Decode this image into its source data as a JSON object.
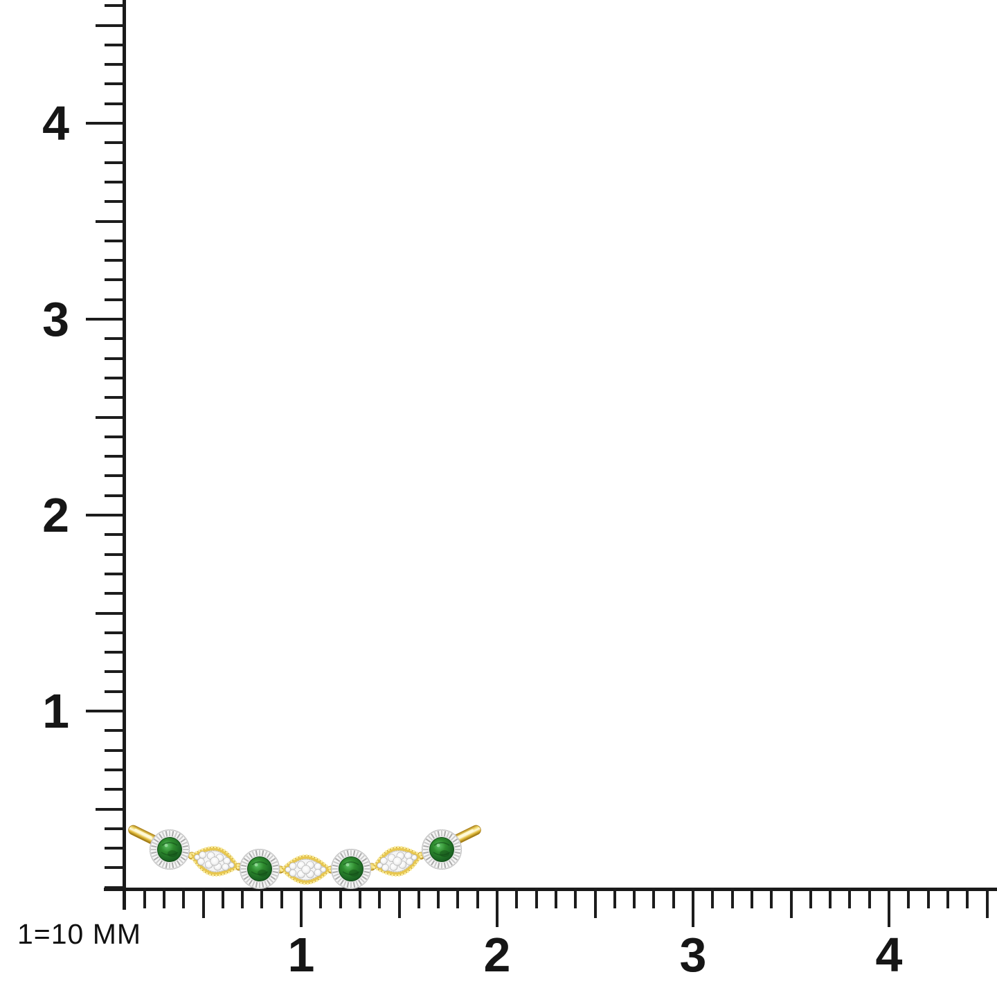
{
  "scale_note": {
    "text": "1=10 MM"
  },
  "vertical_ruler": {
    "labels": [
      "4",
      "3",
      "2",
      "1"
    ],
    "major_values_top_to_bottom": [
      4,
      3,
      2,
      1
    ],
    "minor_step": 0.1,
    "half_step_medium_ticks": true
  },
  "horizontal_ruler": {
    "labels": [
      "1",
      "2",
      "3",
      "4"
    ],
    "major_values_left_to_right": [
      1,
      2,
      3,
      4
    ],
    "minor_step": 0.1,
    "half_step_medium_ticks": true
  },
  "ruler_color": "#1A1A1A",
  "jewelry": {
    "type": "curved bar pendant",
    "round_green_stone_halos": 4,
    "marquise_diamond_clusters": 3,
    "gold_end_tabs": 2,
    "colors": {
      "gold": "#E7C64F",
      "gold_dark": "#B2881F",
      "gold_deep": "#8F6C10",
      "gold_light": "#FBEC9A",
      "gold_highlight": "#FFFBE2",
      "green": "#2E8B2E",
      "green_dark": "#14511A",
      "green_light": "#5CC163",
      "metal_white": "#F5F5F5",
      "metal_gray": "#B5B5B5",
      "flute_gray": "#ABABAB",
      "diamond_white": "#FFFFFF",
      "diamond_edge": "#ADADAD"
    }
  }
}
